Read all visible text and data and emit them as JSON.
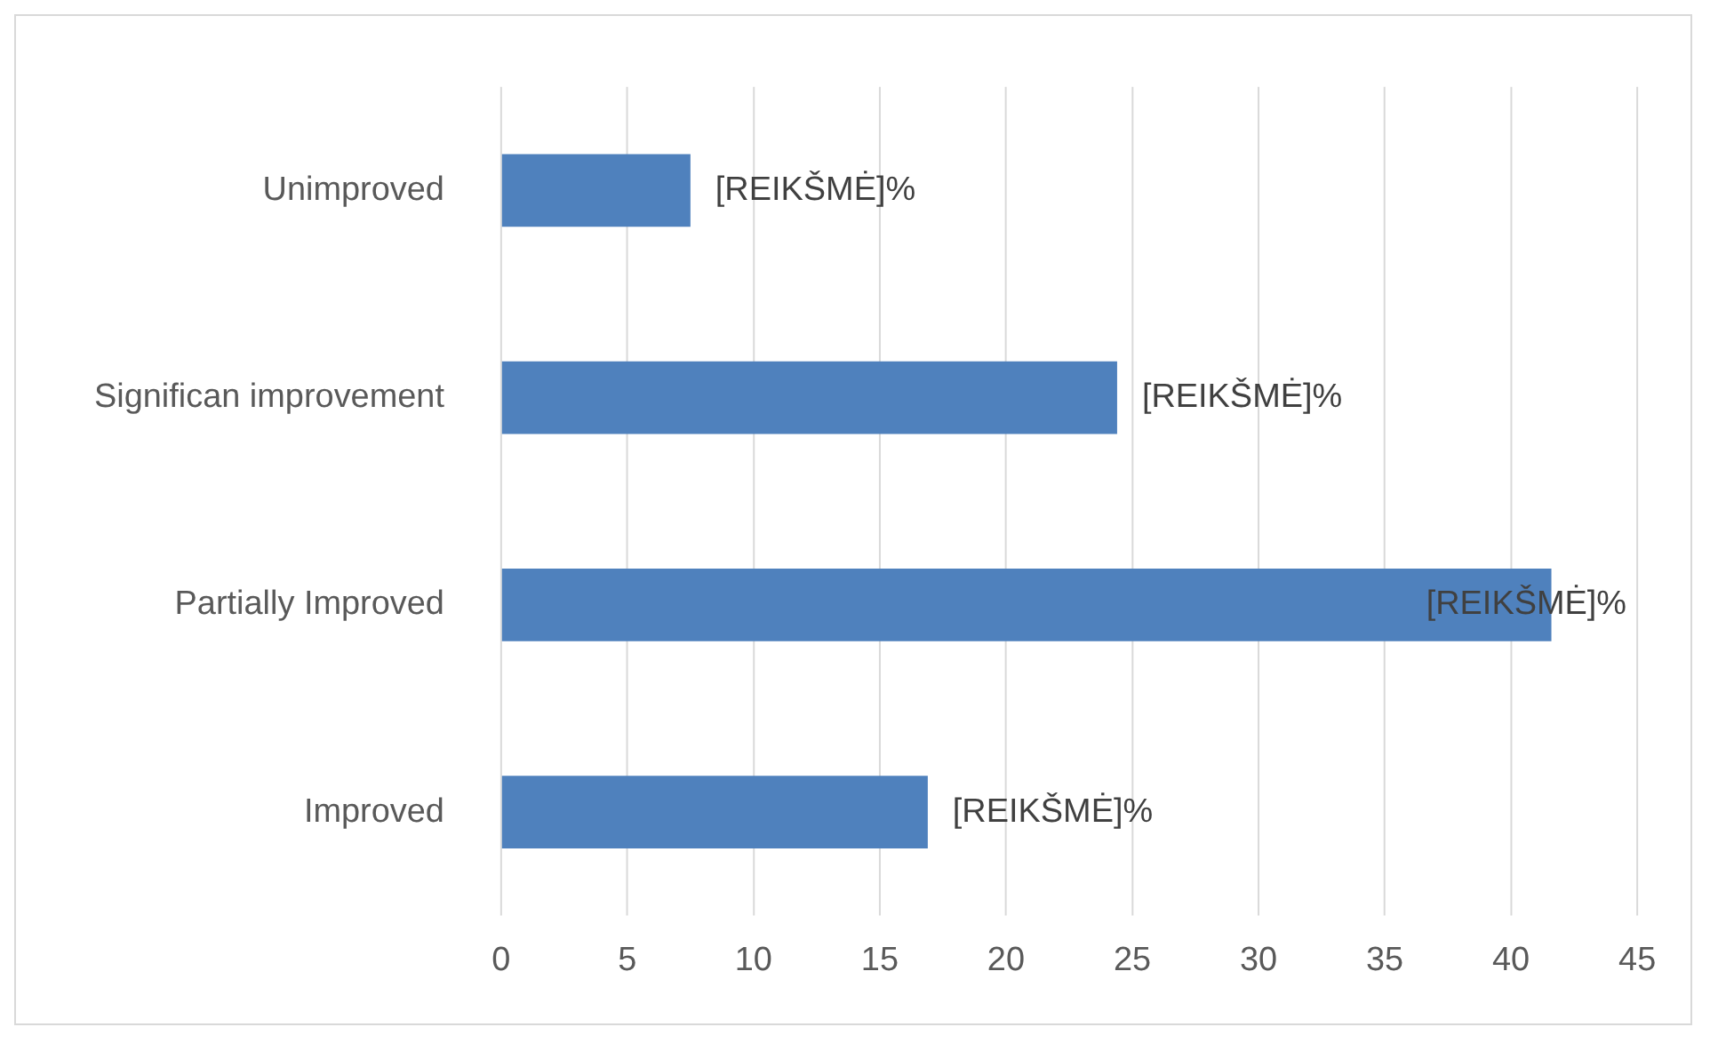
{
  "chart_data": {
    "type": "bar",
    "orientation": "horizontal",
    "categories": [
      "Unimproved",
      "Significan improvement",
      "Partially Improved",
      "Improved"
    ],
    "values": [
      7.5,
      24.4,
      41.6,
      16.9
    ],
    "value_labels": [
      "[REIKŠMĖ]%",
      "[REIKŠMĖ]%",
      "[REIKŠMĖ]%",
      "[REIKŠMĖ]%"
    ],
    "color": "#4f81bd",
    "xlim": [
      0,
      45
    ],
    "xticks": [
      0,
      5,
      10,
      15,
      20,
      25,
      30,
      35,
      40,
      45
    ],
    "grid": "x",
    "legend": false
  }
}
